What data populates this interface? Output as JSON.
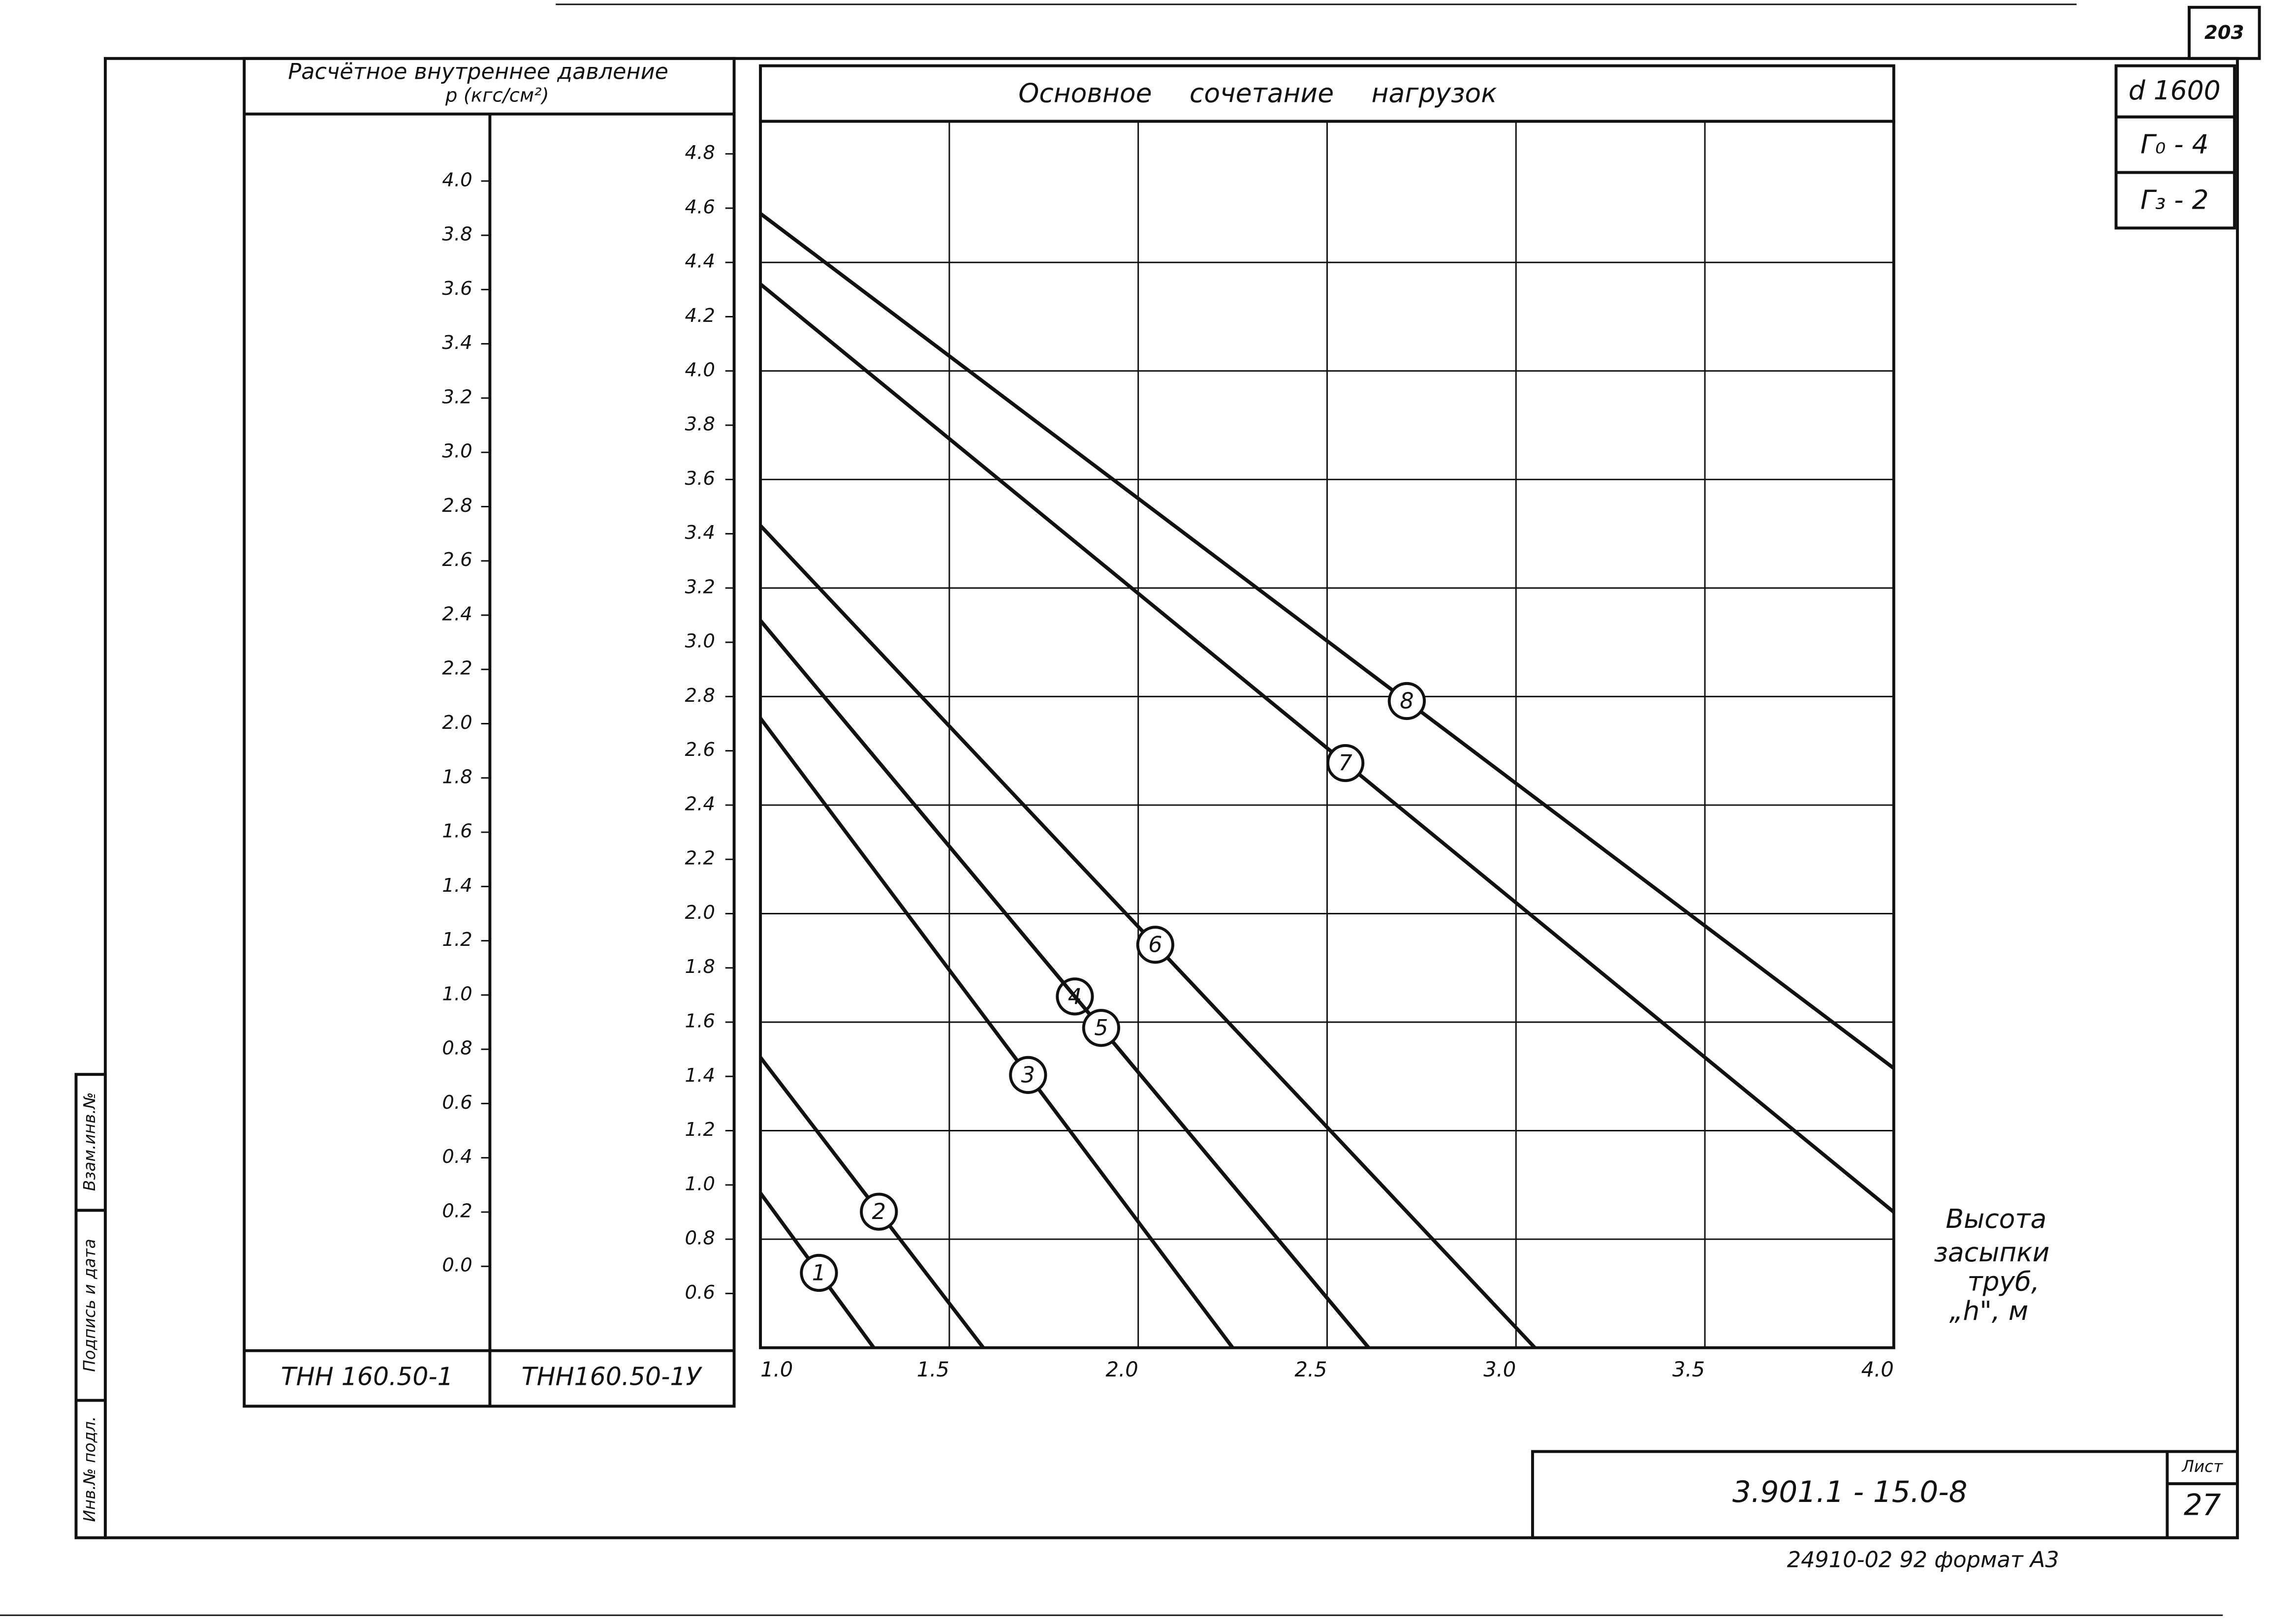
{
  "sheet_number": "203",
  "left_strip": [
    "Инв.№ подл.",
    "Подпись и дата",
    "Взам.инв.№"
  ],
  "table": {
    "header_line1": "Расчётное внутреннее давление",
    "header_line2": "p (кгс/см²)",
    "columns": [
      "ТНН 160.50-1",
      "ТНН160.50-1У"
    ]
  },
  "chart_header": "Основное сочетание нагрузок",
  "parameters": [
    "d 1600",
    "Г₀ - 4",
    "Г₃ - 2"
  ],
  "axis_label_lines": [
    "Высота",
    "засыпки",
    "труб,",
    "„h\", м"
  ],
  "stamp": {
    "code": "3.901.1 - 15.0-8",
    "sheet_label": "Лист",
    "sheet": "27"
  },
  "footer": "24910-02  92  формат А3",
  "chart_data": {
    "type": "line",
    "xlim": [
      1.0,
      4.0
    ],
    "xticks": [
      {
        "value": 1.0,
        "label": "1.0"
      },
      1.5,
      {
        "value": 2.0,
        "label": "2.0"
      },
      2.5,
      {
        "value": 3.0,
        "label": "3.0"
      },
      3.5,
      {
        "value": 4.0,
        "label": "4.0"
      }
    ],
    "ylim": [
      0.4,
      4.92
    ],
    "yticks": [
      4.8,
      4.6,
      4.4,
      4.2,
      {
        "value": 4.0,
        "label": "4.0"
      },
      3.8,
      3.6,
      3.4,
      3.2,
      {
        "value": 3.0,
        "label": "3.0"
      },
      2.8,
      2.6,
      2.4,
      2.2,
      {
        "value": 2.0,
        "label": "2.0"
      },
      1.8,
      1.6,
      1.4,
      1.2,
      {
        "value": 1.0,
        "label": "1.0"
      },
      0.8,
      0.6
    ],
    "ygrid": [
      4.4,
      4.0,
      3.6,
      3.2,
      2.8,
      2.4,
      2.0,
      1.6,
      1.2,
      0.8
    ],
    "y2lim": [
      -0.3,
      4.22
    ],
    "y2ticks": [
      {
        "value": 4.0,
        "label": "4.0"
      },
      3.8,
      3.6,
      3.4,
      3.2,
      {
        "value": 3.0,
        "label": "3.0"
      },
      2.8,
      2.6,
      2.4,
      2.2,
      {
        "value": 2.0,
        "label": "2.0"
      },
      1.8,
      1.6,
      1.4,
      1.2,
      {
        "value": 1.0,
        "label": "1.0"
      },
      0.8,
      0.6,
      0.4,
      0.2,
      {
        "value": 0.0,
        "label": "0.0"
      }
    ],
    "color": "#111111",
    "series": [
      {
        "name": "1",
        "x": [
          1.0,
          1.3
        ],
        "values": [
          0.97,
          0.4
        ]
      },
      {
        "name": "2",
        "x": [
          1.0,
          1.59
        ],
        "values": [
          1.47,
          0.4
        ]
      },
      {
        "name": "3",
        "x": [
          1.0,
          2.25
        ],
        "values": [
          2.72,
          0.4
        ]
      },
      {
        "name": "4",
        "x": [
          1.0,
          2.61
        ],
        "values": [
          3.08,
          0.4
        ]
      },
      {
        "name": "5",
        "x": [
          1.0,
          2.61
        ],
        "values": [
          3.08,
          0.4
        ]
      },
      {
        "name": "6",
        "x": [
          1.0,
          3.05
        ],
        "values": [
          3.43,
          0.4
        ]
      },
      {
        "name": "7",
        "x": [
          1.0,
          4.0
        ],
        "values": [
          4.32,
          0.9
        ]
      },
      {
        "name": "8",
        "x": [
          1.0,
          4.0
        ],
        "values": [
          4.58,
          1.43
        ]
      }
    ]
  }
}
